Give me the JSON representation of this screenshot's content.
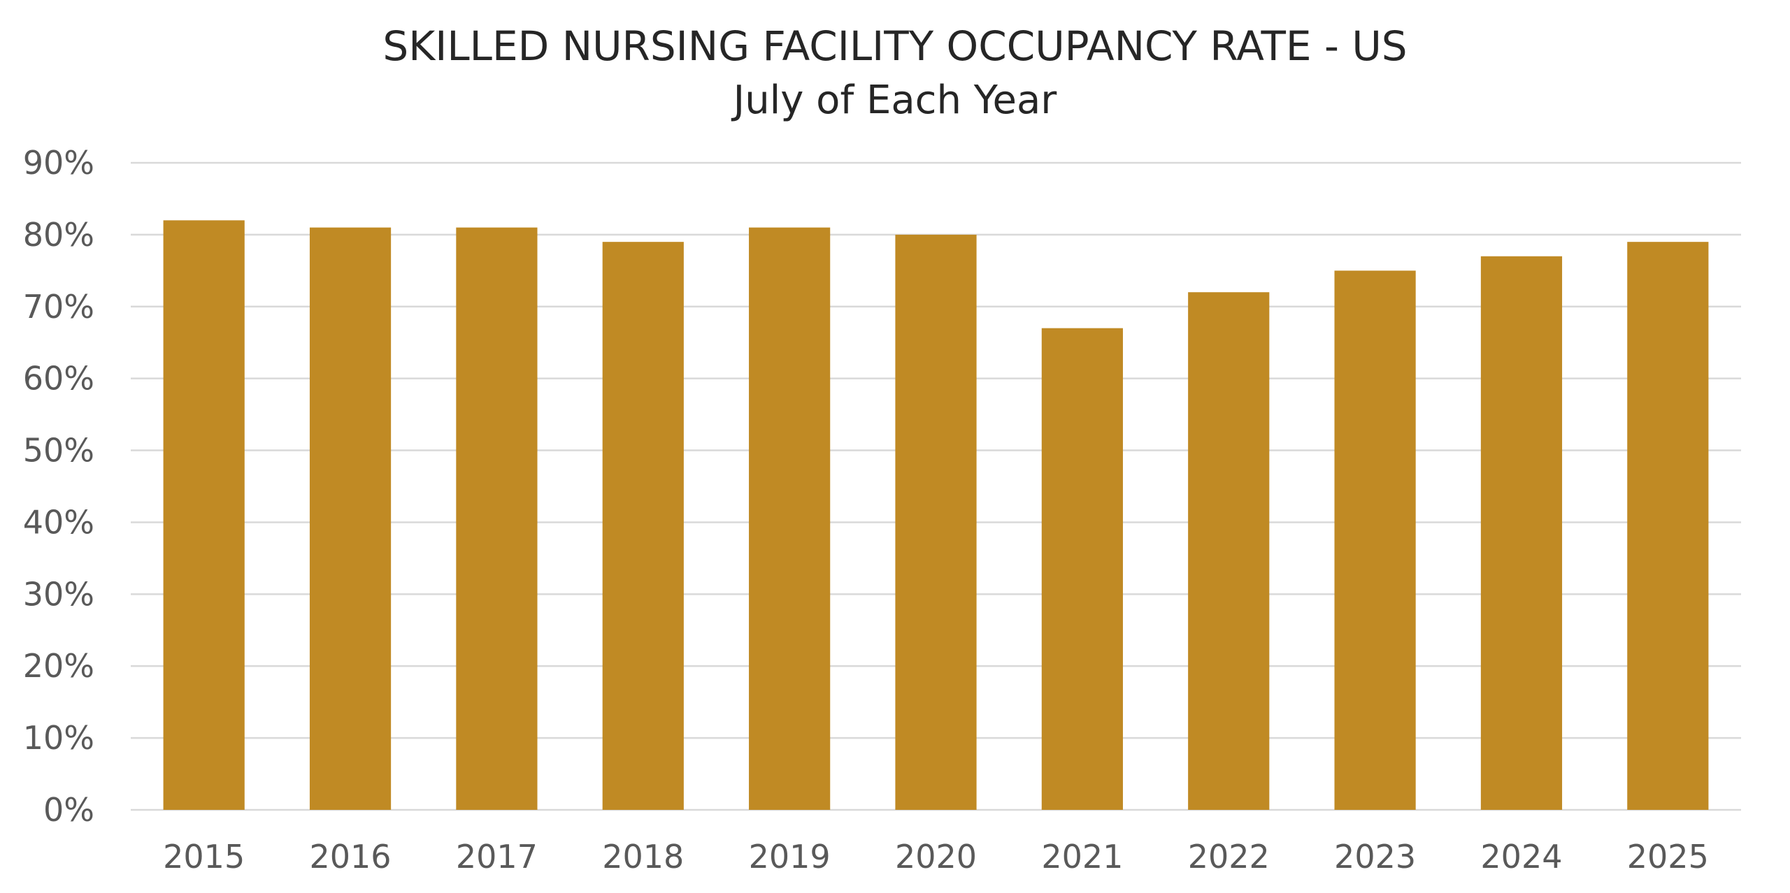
{
  "chart_data": {
    "type": "bar",
    "title": "SKILLED NURSING FACILITY OCCUPANCY RATE - US",
    "subtitle": "July of Each Year",
    "xlabel": "",
    "ylabel": "",
    "categories": [
      "2015",
      "2016",
      "2017",
      "2018",
      "2019",
      "2020",
      "2021",
      "2022",
      "2023",
      "2024",
      "2025"
    ],
    "values": [
      82,
      81,
      81,
      79,
      81,
      80,
      67,
      72,
      75,
      77,
      79
    ],
    "ylim": [
      0,
      90
    ],
    "yticks": [
      0,
      10,
      20,
      30,
      40,
      50,
      60,
      70,
      80,
      90
    ],
    "ytick_labels": [
      "0%",
      "10%",
      "20%",
      "30%",
      "40%",
      "50%",
      "60%",
      "70%",
      "80%",
      "90%"
    ],
    "grid": true,
    "legend": "none",
    "colors": {
      "bar": "#C08A24",
      "grid": "#D9D9D9",
      "text": "#595959"
    }
  }
}
